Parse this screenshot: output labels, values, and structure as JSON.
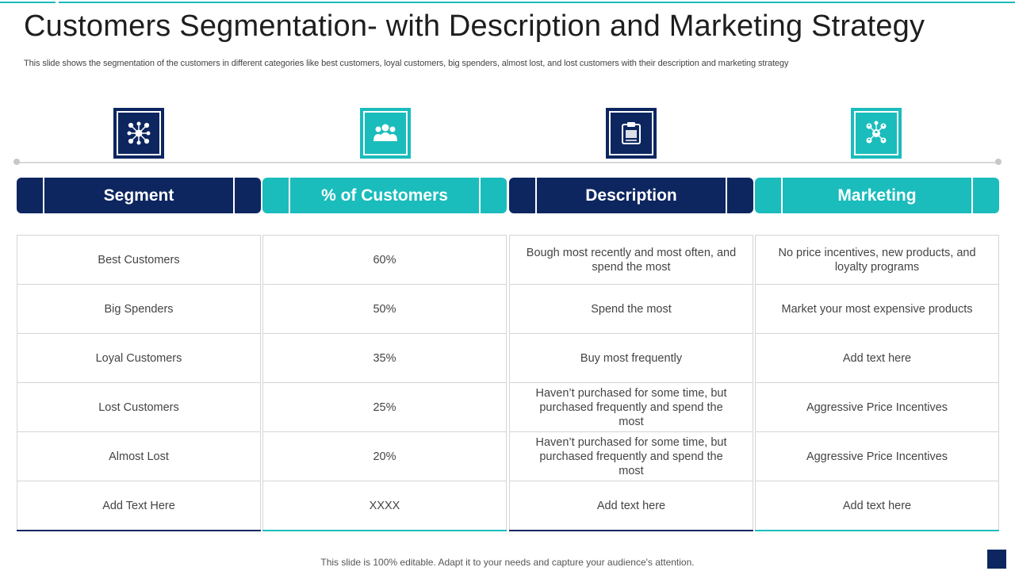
{
  "title": "Customers Segmentation- with Description and Marketing Strategy",
  "subtitle": "This slide shows the segmentation of the customers in different categories like best customers, loyal customers, big spenders, almost lost, and lost customers with their description and marketing strategy",
  "icons": [
    "network-icon",
    "people-group-icon",
    "clipboard-icon",
    "connected-users-icon"
  ],
  "colors": {
    "navy": "#0d2660",
    "teal": "#1bbcbc"
  },
  "headers": [
    "Segment",
    "% of Customers",
    "Description",
    "Marketing"
  ],
  "rows": [
    [
      "Best Customers",
      "60%",
      "Bough most recently and most often, and spend the most",
      "No price incentives, new products, and loyalty programs"
    ],
    [
      "Big Spenders",
      "50%",
      "Spend the most",
      "Market  your most expensive products"
    ],
    [
      "Loyal Customers",
      "35%",
      "Buy most frequently",
      "Add text here"
    ],
    [
      "Lost Customers",
      "25%",
      "Haven’t  purchased for some time, but purchased frequently  and spend the most",
      "Aggressive Price Incentives"
    ],
    [
      "Almost Lost",
      "20%",
      "Haven’t  purchased for some time, but purchased frequently  and spend the most",
      "Aggressive Price Incentives"
    ],
    [
      "Add Text Here",
      "XXXX",
      "Add text here",
      "Add text here"
    ]
  ],
  "footer": "This slide is 100% editable. Adapt it to your needs and capture your audience's attention."
}
